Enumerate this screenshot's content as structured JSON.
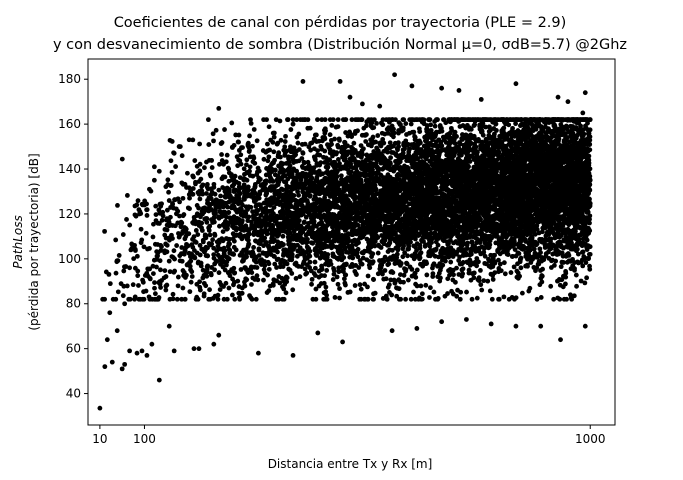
{
  "chart_data": {
    "type": "scatter",
    "title_lines": [
      "Coeficientes de canal con pérdidas por trayectoria (PLE = 2.9)",
      "y con desvanecimiento de sombra (Distribución Normal μ=0, σdB=5.7) @2Ghz"
    ],
    "xlabel": "Distancia entre Tx y Rx [m]",
    "ylabel_lines": [
      "PathLoss",
      "(pérdida por trayectoria) [dB]"
    ],
    "xlim": [
      -14,
      1050
    ],
    "ylim": [
      26,
      189
    ],
    "xticks": [
      10,
      100,
      1000
    ],
    "yticks": [
      40,
      60,
      80,
      100,
      120,
      140,
      160,
      180
    ],
    "grid": false,
    "marker_color": "#000000",
    "series": [
      {
        "points": [
          [
            10,
            33.5
          ],
          [
            20,
            52
          ],
          [
            25,
            64
          ],
          [
            35,
            54
          ],
          [
            55,
            51
          ],
          [
            60,
            53
          ],
          [
            30,
            76
          ],
          [
            45,
            68
          ],
          [
            60,
            80
          ],
          [
            70,
            96
          ],
          [
            80,
            106
          ],
          [
            90,
            120
          ],
          [
            100,
            124
          ],
          [
            110,
            131
          ],
          [
            120,
            135
          ],
          [
            130,
            139
          ],
          [
            70,
            59
          ],
          [
            85,
            58
          ],
          [
            95,
            59
          ],
          [
            105,
            57
          ],
          [
            115,
            62
          ],
          [
            130,
            46
          ],
          [
            150,
            70
          ],
          [
            160,
            59
          ],
          [
            200,
            60
          ],
          [
            210,
            60
          ],
          [
            240,
            62
          ],
          [
            250,
            66
          ],
          [
            330,
            58
          ],
          [
            400,
            57
          ],
          [
            450,
            67
          ],
          [
            500,
            63
          ],
          [
            600,
            68
          ],
          [
            650,
            69
          ],
          [
            700,
            72
          ],
          [
            750,
            73
          ],
          [
            800,
            71
          ],
          [
            850,
            70
          ],
          [
            900,
            70
          ],
          [
            940,
            64
          ],
          [
            990,
            70
          ],
          [
            860,
            96
          ],
          [
            960,
            84
          ],
          [
            120,
            141
          ],
          [
            160,
            147
          ],
          [
            170,
            150
          ],
          [
            250,
            167
          ],
          [
            270,
            140
          ],
          [
            290,
            152
          ],
          [
            360,
            156
          ],
          [
            400,
            160
          ],
          [
            430,
            162
          ],
          [
            420,
            179
          ],
          [
            495,
            179
          ],
          [
            515,
            172
          ],
          [
            540,
            169
          ],
          [
            575,
            168
          ],
          [
            605,
            182
          ],
          [
            640,
            177
          ],
          [
            700,
            176
          ],
          [
            735,
            175
          ],
          [
            780,
            171
          ],
          [
            850,
            178
          ],
          [
            935,
            172
          ],
          [
            990,
            174
          ],
          [
            985,
            165
          ],
          [
            955,
            170
          ],
          [
            880,
            162
          ]
        ]
      }
    ],
    "cloud": {
      "count": 9000,
      "median_at_10m": 75,
      "ple": 2.9,
      "sigma_db": 5.7
    }
  }
}
